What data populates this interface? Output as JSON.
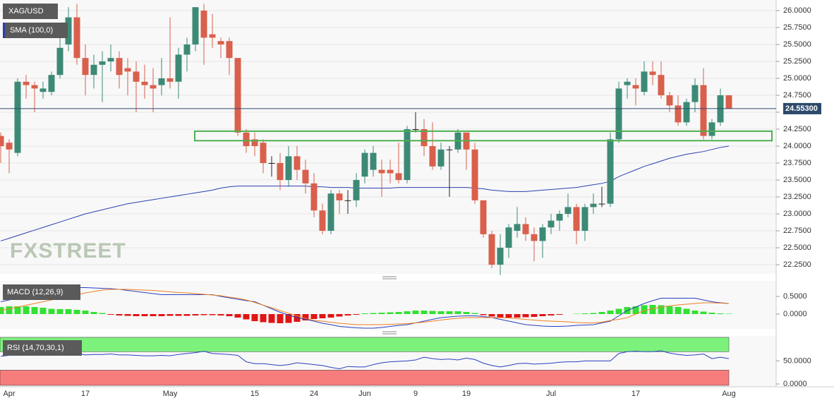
{
  "chart_data": [
    {
      "type": "candlestick",
      "title": "XAG/USD",
      "watermark": "FXSTREET",
      "categories": [
        null,
        "Apr",
        null,
        null,
        null,
        null,
        null,
        null,
        null,
        null,
        "17",
        null,
        null,
        null,
        null,
        null,
        null,
        null,
        null,
        null,
        "May",
        null,
        null,
        null,
        null,
        null,
        null,
        null,
        null,
        null,
        "15",
        null,
        null,
        null,
        null,
        null,
        null,
        "24",
        null,
        null,
        null,
        null,
        null,
        "Jun",
        null,
        null,
        null,
        null,
        null,
        "9",
        null,
        null,
        null,
        null,
        null,
        "19",
        null,
        null,
        null,
        null,
        null,
        null,
        null,
        null,
        null,
        "Jul",
        null,
        null,
        null,
        null,
        null,
        null,
        null,
        null,
        null,
        "17",
        null,
        null,
        null,
        null,
        null,
        null,
        null,
        null,
        null,
        null,
        "Aug"
      ],
      "open": [
        24.15,
        24.05,
        23.9,
        24.95,
        24.9,
        24.8,
        24.8,
        25.05,
        25.5,
        25.9,
        25.3,
        25.05,
        25.2,
        25.25,
        25.3,
        25.15,
        25.1,
        24.95,
        24.9,
        24.9,
        25.0,
        24.95,
        25.35,
        25.5,
        26.0,
        25.65,
        25.55,
        25.55,
        25.3,
        24.2,
        24.1,
        24.05,
        23.75,
        23.75,
        23.5,
        23.85,
        23.65,
        23.45,
        23.05,
        22.75,
        23.3,
        23.2,
        23.2,
        23.55,
        23.65,
        23.65,
        23.65,
        23.6,
        23.5,
        24.25,
        24.25,
        24.0,
        23.7,
        23.95,
        23.95,
        24.2,
        23.95,
        23.2,
        22.7,
        22.25,
        22.5,
        22.75,
        22.85,
        22.7,
        22.6,
        22.8,
        22.9,
        23.0,
        23.1,
        22.75,
        23.1,
        23.15,
        23.15,
        24.1,
        24.9,
        24.9,
        24.8,
        25.1,
        25.05,
        24.75,
        24.6,
        24.35,
        24.65,
        24.9,
        24.15,
        24.35,
        24.75
      ],
      "high": [
        24.2,
        24.1,
        25.0,
        25.05,
        24.95,
        24.95,
        25.1,
        25.8,
        26.05,
        26.1,
        25.5,
        25.35,
        25.4,
        25.5,
        25.4,
        25.3,
        25.25,
        25.2,
        25.15,
        25.3,
        25.9,
        25.45,
        25.6,
        26.05,
        26.1,
        25.95,
        25.6,
        25.6,
        25.3,
        24.25,
        24.2,
        24.1,
        23.85,
        23.9,
        24.0,
        24.0,
        23.8,
        23.6,
        23.15,
        23.35,
        23.35,
        23.35,
        23.6,
        23.95,
        24.0,
        23.8,
        23.8,
        24.05,
        24.3,
        24.5,
        24.4,
        24.35,
        24.05,
        24.0,
        24.25,
        24.2,
        24.05,
        23.2,
        22.75,
        22.7,
        22.85,
        23.1,
        22.95,
        22.8,
        22.85,
        23.0,
        23.05,
        23.3,
        23.15,
        23.15,
        23.3,
        23.4,
        24.2,
        24.95,
        25.0,
        25.0,
        25.25,
        25.25,
        25.25,
        24.8,
        24.75,
        24.7,
        25.0,
        25.15,
        24.4,
        24.85,
        24.75
      ],
      "low": [
        23.75,
        23.6,
        23.85,
        24.7,
        24.5,
        24.7,
        24.75,
        25.0,
        25.4,
        25.2,
        24.75,
        24.85,
        24.65,
        25.1,
        24.85,
        24.75,
        24.5,
        24.7,
        24.5,
        24.75,
        24.85,
        24.7,
        25.1,
        25.4,
        25.2,
        25.45,
        25.3,
        25.05,
        24.15,
        23.9,
        23.85,
        23.6,
        23.55,
        23.35,
        23.4,
        23.5,
        23.3,
        22.95,
        22.7,
        22.7,
        23.0,
        23.0,
        23.1,
        23.45,
        23.55,
        23.25,
        23.45,
        23.45,
        23.45,
        24.2,
        23.85,
        23.65,
        23.65,
        23.25,
        23.9,
        23.65,
        23.15,
        22.65,
        22.2,
        22.1,
        22.35,
        22.65,
        22.6,
        22.3,
        22.35,
        22.7,
        22.75,
        22.95,
        22.55,
        22.6,
        23.0,
        23.1,
        23.1,
        24.05,
        24.7,
        24.6,
        24.75,
        24.9,
        24.7,
        24.5,
        24.3,
        24.3,
        24.5,
        24.1,
        24.1,
        24.3,
        24.55
      ],
      "close": [
        24.0,
        23.95,
        24.95,
        24.9,
        24.85,
        24.85,
        25.05,
        25.45,
        25.9,
        25.3,
        25.05,
        25.2,
        25.25,
        25.3,
        25.05,
        25.1,
        24.95,
        24.9,
        24.85,
        25.0,
        24.95,
        25.35,
        25.5,
        26.05,
        25.6,
        25.6,
        25.5,
        25.3,
        24.2,
        24.0,
        24.0,
        23.75,
        23.75,
        23.5,
        23.85,
        23.65,
        23.45,
        23.05,
        22.75,
        23.3,
        23.2,
        23.2,
        23.5,
        23.9,
        23.9,
        23.6,
        23.6,
        23.5,
        24.25,
        24.25,
        24.0,
        23.7,
        23.95,
        23.95,
        24.2,
        23.95,
        23.2,
        22.7,
        22.25,
        22.5,
        22.8,
        22.85,
        22.7,
        22.6,
        22.8,
        22.9,
        23.0,
        23.1,
        22.75,
        23.1,
        23.15,
        23.15,
        24.1,
        24.85,
        24.95,
        24.85,
        25.1,
        25.05,
        24.75,
        24.6,
        24.35,
        24.65,
        24.9,
        24.15,
        24.35,
        24.75,
        24.553
      ],
      "up_color": "#3c8a76",
      "down_color": "#d9604c",
      "sma": {
        "name": "SMA (100,0)",
        "color": "#2a3fb0",
        "values": [
          22.6,
          22.64,
          22.68,
          22.72,
          22.76,
          22.8,
          22.84,
          22.88,
          22.92,
          22.96,
          23.0,
          23.03,
          23.06,
          23.09,
          23.12,
          23.15,
          23.17,
          23.19,
          23.21,
          23.23,
          23.25,
          23.27,
          23.29,
          23.31,
          23.33,
          23.35,
          23.38,
          23.4,
          23.41,
          23.41,
          23.41,
          23.41,
          23.41,
          23.41,
          23.41,
          23.41,
          23.41,
          23.4,
          23.4,
          23.39,
          23.39,
          23.39,
          23.38,
          23.38,
          23.38,
          23.38,
          23.38,
          23.39,
          23.39,
          23.39,
          23.39,
          23.39,
          23.39,
          23.39,
          23.39,
          23.39,
          23.38,
          23.37,
          23.35,
          23.34,
          23.33,
          23.33,
          23.33,
          23.34,
          23.35,
          23.36,
          23.37,
          23.38,
          23.39,
          23.41,
          23.43,
          23.45,
          23.48,
          23.55,
          23.6,
          23.65,
          23.7,
          23.74,
          23.78,
          23.82,
          23.85,
          23.88,
          23.9,
          23.92,
          23.95,
          23.98,
          24.0
        ]
      },
      "zone": [
        24.08,
        24.22
      ],
      "last_price": {
        "value": 24.553,
        "label": "24.55300"
      },
      "ylim": [
        22.115,
        26.156
      ],
      "yticks": [
        {
          "value": 22.25,
          "label": "22.2500"
        },
        {
          "value": 22.5,
          "label": "22.5000"
        },
        {
          "value": 22.75,
          "label": "22.7500"
        },
        {
          "value": 23.0,
          "label": "23.0000"
        },
        {
          "value": 23.25,
          "label": "23.2500"
        },
        {
          "value": 23.5,
          "label": "23.5000"
        },
        {
          "value": 23.75,
          "label": "23.7500"
        },
        {
          "value": 24.0,
          "label": "24.0000"
        },
        {
          "value": 24.25,
          "label": "24.2500"
        },
        {
          "value": 24.5,
          "label": "24.5000"
        },
        {
          "value": 24.75,
          "label": "24.7500"
        },
        {
          "value": 25.0,
          "label": "25.0000"
        },
        {
          "value": 25.25,
          "label": "25.2500"
        },
        {
          "value": 25.5,
          "label": "25.5000"
        },
        {
          "value": 25.75,
          "label": "25.7500"
        },
        {
          "value": 26.0,
          "label": "26.0000"
        }
      ],
      "grid": true
    },
    {
      "type": "macd",
      "title": "MACD (12,26,9)",
      "histogram": [
        0.2,
        0.22,
        0.22,
        0.22,
        0.2,
        0.18,
        0.15,
        0.14,
        0.14,
        0.12,
        0.1,
        0.06,
        0.03,
        -0.02,
        -0.04,
        -0.05,
        -0.06,
        -0.06,
        -0.06,
        -0.06,
        -0.05,
        -0.05,
        -0.05,
        -0.04,
        -0.03,
        -0.03,
        -0.04,
        -0.06,
        -0.1,
        -0.15,
        -0.2,
        -0.23,
        -0.25,
        -0.26,
        -0.25,
        -0.22,
        -0.18,
        -0.14,
        -0.12,
        -0.1,
        -0.07,
        -0.04,
        -0.02,
        0.02,
        0.03,
        0.04,
        0.05,
        0.06,
        0.08,
        0.1,
        0.1,
        0.09,
        0.08,
        0.08,
        0.08,
        0.06,
        0.03,
        -0.03,
        -0.07,
        -0.1,
        -0.1,
        -0.1,
        -0.09,
        -0.08,
        -0.06,
        -0.04,
        -0.02,
        0.0,
        0.01,
        0.02,
        0.03,
        0.06,
        0.1,
        0.15,
        0.2,
        0.22,
        0.25,
        0.26,
        0.25,
        0.22,
        0.2,
        0.15,
        0.1,
        0.07,
        0.04,
        0.02,
        0.01
      ],
      "positive_color": "#33e033",
      "negative_color": "#e01515",
      "macd": {
        "color": "#2a3fc0",
        "values": [
          0.35,
          0.4,
          0.45,
          0.5,
          0.55,
          0.6,
          0.65,
          0.7,
          0.72,
          0.75,
          0.75,
          0.74,
          0.73,
          0.72,
          0.7,
          0.67,
          0.64,
          0.61,
          0.58,
          0.55,
          0.55,
          0.55,
          0.55,
          0.55,
          0.55,
          0.55,
          0.5,
          0.46,
          0.42,
          0.38,
          0.35,
          0.25,
          0.15,
          0.05,
          -0.03,
          -0.1,
          -0.15,
          -0.2,
          -0.26,
          -0.3,
          -0.35,
          -0.37,
          -0.39,
          -0.4,
          -0.4,
          -0.38,
          -0.35,
          -0.32,
          -0.3,
          -0.25,
          -0.2,
          -0.15,
          -0.1,
          -0.08,
          -0.06,
          -0.05,
          -0.05,
          -0.07,
          -0.1,
          -0.15,
          -0.2,
          -0.25,
          -0.3,
          -0.32,
          -0.34,
          -0.35,
          -0.35,
          -0.34,
          -0.32,
          -0.31,
          -0.3,
          -0.25,
          -0.2,
          -0.05,
          0.1,
          0.2,
          0.3,
          0.38,
          0.45,
          0.45,
          0.45,
          0.45,
          0.45,
          0.4,
          0.35,
          0.32,
          0.3
        ]
      },
      "signal": {
        "color": "#f08020",
        "values": [
          0.1,
          0.15,
          0.2,
          0.25,
          0.3,
          0.35,
          0.4,
          0.45,
          0.5,
          0.55,
          0.6,
          0.64,
          0.68,
          0.7,
          0.7,
          0.7,
          0.69,
          0.68,
          0.67,
          0.65,
          0.63,
          0.61,
          0.6,
          0.58,
          0.56,
          0.54,
          0.52,
          0.48,
          0.45,
          0.4,
          0.33,
          0.25,
          0.18,
          0.1,
          0.02,
          -0.05,
          -0.12,
          -0.18,
          -0.2,
          -0.23,
          -0.26,
          -0.28,
          -0.3,
          -0.3,
          -0.3,
          -0.3,
          -0.29,
          -0.28,
          -0.27,
          -0.25,
          -0.23,
          -0.2,
          -0.17,
          -0.14,
          -0.12,
          -0.1,
          -0.1,
          -0.1,
          -0.1,
          -0.1,
          -0.11,
          -0.13,
          -0.15,
          -0.17,
          -0.19,
          -0.2,
          -0.21,
          -0.22,
          -0.24,
          -0.25,
          -0.25,
          -0.23,
          -0.18,
          -0.15,
          -0.1,
          0.0,
          0.1,
          0.15,
          0.2,
          0.23,
          0.26,
          0.28,
          0.3,
          0.32,
          0.32,
          0.31,
          0.3
        ]
      },
      "ylim": [
        -0.4,
        0.9
      ],
      "yticks": [
        {
          "value": 0,
          "label": "0.0000"
        },
        {
          "value": 0.5,
          "label": "0.5000"
        }
      ]
    },
    {
      "type": "rsi",
      "title": "RSI (14,70,30,1)",
      "rsi": {
        "color": "#2a3fc0",
        "values": [
          60,
          62,
          66,
          65,
          64,
          65,
          67,
          68,
          68,
          66,
          63,
          64,
          64,
          65,
          63,
          63,
          62,
          61,
          61,
          62,
          61,
          64,
          66,
          68,
          71,
          66,
          65,
          64,
          62,
          48,
          44,
          44,
          42,
          40,
          42,
          46,
          44,
          42,
          40,
          36,
          33,
          38,
          37,
          37,
          42,
          46,
          48,
          49,
          50,
          52,
          58,
          55,
          53,
          54,
          52,
          56,
          53,
          45,
          40,
          37,
          40,
          44,
          45,
          43,
          44,
          45,
          47,
          48,
          48,
          50,
          50,
          50,
          50,
          66,
          70,
          71,
          70,
          70,
          72,
          67,
          64,
          62,
          63,
          65,
          55,
          58,
          55
        ]
      },
      "overbought": 70,
      "oversold": 30,
      "overbought_color": "#7cf27c",
      "oversold_color": "#f77c7c",
      "ylim": [
        -3,
        101
      ],
      "yticks": [
        {
          "value": 0,
          "label": "0.0000"
        },
        {
          "value": 50,
          "label": "50.0000"
        }
      ]
    }
  ]
}
